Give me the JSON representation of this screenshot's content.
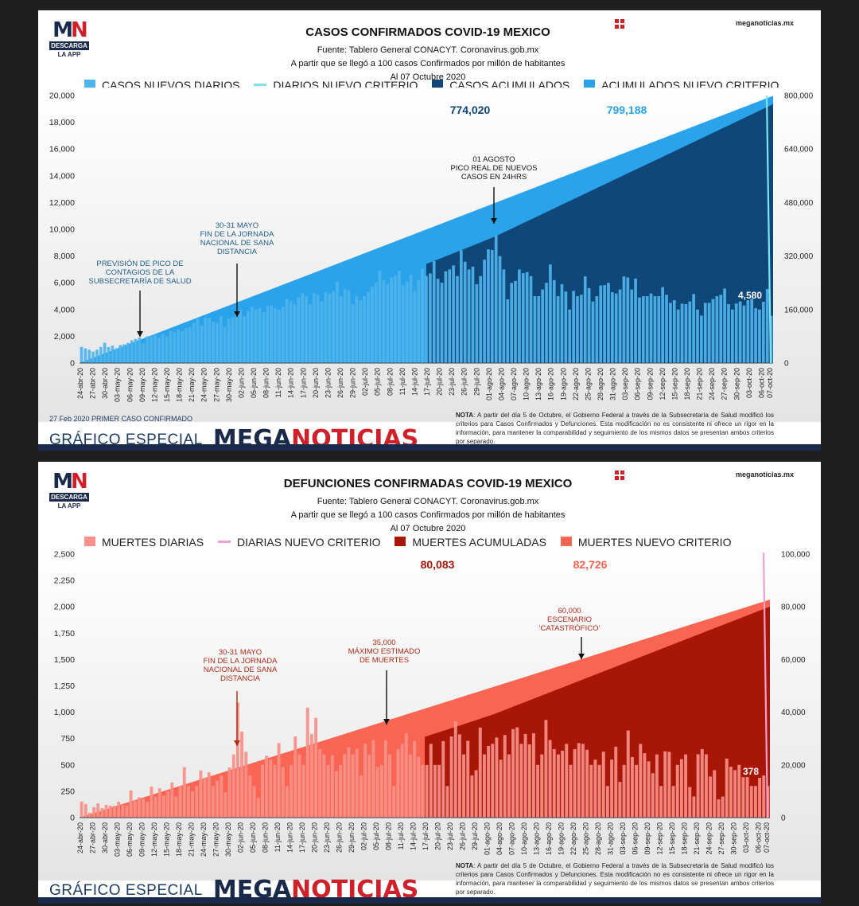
{
  "cases": {
    "logo": {
      "mn_m": "M",
      "mn_n": "N",
      "download": "DESCARGA",
      "app": "LA APP"
    },
    "site": "meganoticias.mx",
    "title": "CASOS CONFIRMADOS COVID-19 MEXICO",
    "source": "Fuente: Tablero General CONACYT. Coronavirus.gob.mx",
    "subtitle": "A partir que se llegó a 100 casos Confirmados por millón de habitantes",
    "date": "Al 07 Octubre 2020",
    "legend": [
      "CASOS NUEVOS DIARIOS",
      "DIARIOS NUEVO CRITERIO",
      "CASOS ACUMULADOS",
      "ACUMULADOS NUEVO CRITERIO"
    ],
    "first_case": "27 Feb 2020 PRIMER CASO CONFIRMADO",
    "brand_prefix": "GRÁFICO ESPECIAL",
    "brand_a": "MEGA",
    "brand_b": "NOTICIAS",
    "note_bold": "NOTA",
    "note": ": A partir del día 5 de Octubre, el Gobierno Federal a través de la Subsecretaría de Salud modificó los criterios para Casos Confirmados y Defunciones. Esta modificación no es consistente ni ofrece un rigor en la información, para mantener la comparabilidad y seguimiento de los mismos datos se presentan ambos criterios por separado.",
    "colors": {
      "daily": "#4fb3ec",
      "daily_new": "#7ee3f0",
      "cum": "#0e4778",
      "cum_new": "#2aa3ea",
      "text": "#1d5d8c",
      "bottom": "#1a2a4a"
    }
  },
  "deaths": {
    "logo": {
      "mn_m": "M",
      "mn_n": "N",
      "download": "DESCARGA",
      "app": "LA APP"
    },
    "site": "meganoticias.mx",
    "title": "DEFUNCIONES CONFIRMADAS COVID-19 MEXICO",
    "source": "Fuente: Tablero General CONACYT. Coronavirus.gob.mx",
    "subtitle": "A partir que se llegó a 100 casos Confirmados por millón de habitantes",
    "date": "Al 07 Octubre 2020",
    "legend": [
      "MUERTES DIARIAS",
      "DIARIAS NUEVO CRITERIO",
      "MUERTES ACUMULADAS",
      "MUERTES NUEVO CRITERIO"
    ],
    "brand_prefix": "GRÁFICO ESPECIAL",
    "brand_a": "MEGA",
    "brand_b": "NOTICIAS",
    "note_bold": "NOTA",
    "note": ": A partir del día 5 de Octubre, el Gobierno Federal a través de la Subsecretaría de Salud modificó los criterios para Casos Confirmados y Defunciones. Esta modificación no es consistente ni ofrece un rigor en la información, para mantener la comparabilidad y seguimiento de los mismos datos se presentan ambos criterios por separado.",
    "colors": {
      "daily": "#f69088",
      "daily_new": "#f0a0cf",
      "cum": "#a81607",
      "cum_new": "#f86553",
      "text": "#b32a14",
      "bottom": "#1a2a4a"
    }
  },
  "chart_data": [
    {
      "type": "bar",
      "title": "CASOS CONFIRMADOS COVID-19 MEXICO",
      "x_start": "24-abr-20",
      "x_end": "07-oct-20",
      "x_tick_labels": [
        "24-abr-20",
        "27-abr-20",
        "30-abr-20",
        "03-may-20",
        "06-may-20",
        "09-may-20",
        "12-may-20",
        "15-may-20",
        "18-may-20",
        "21-may-20",
        "24-may-20",
        "27-may-20",
        "30-may-20",
        "02-jun-20",
        "05-jun-20",
        "08-jun-20",
        "11-jun-20",
        "14-jun-20",
        "17-jun-20",
        "20-jun-20",
        "23-jun-20",
        "26-jun-20",
        "29-jun-20",
        "02-jul-20",
        "05-jul-20",
        "08-jul-20",
        "11-jul-20",
        "14-jul-20",
        "17-jul-20",
        "20-jul-20",
        "23-jul-20",
        "26-jul-20",
        "29-jul-20",
        "01-ago-20",
        "04-ago-20",
        "07-ago-20",
        "10-ago-20",
        "13-ago-20",
        "16-ago-20",
        "19-ago-20",
        "22-ago-20",
        "25-ago-20",
        "28-ago-20",
        "31-ago-20",
        "03-sep-20",
        "06-sep-20",
        "09-sep-20",
        "12-sep-20",
        "15-sep-20",
        "18-sep-20",
        "21-sep-20",
        "24-sep-20",
        "27-sep-20",
        "30-sep-20",
        "03-oct-20",
        "06-oct-20",
        "07-oct-20"
      ],
      "y_left": {
        "range": [
          0,
          20000
        ],
        "ticks": [
          "0",
          "2,000",
          "4,000",
          "6,000",
          "8,000",
          "10,000",
          "12,000",
          "14,000",
          "16,000",
          "18,000",
          "20,000"
        ]
      },
      "y_right": {
        "range": [
          0,
          800000
        ],
        "ticks": [
          "0",
          "160,000",
          "320,000",
          "480,000",
          "640,000",
          "800,000"
        ]
      },
      "daily_values": [
        1200,
        1100,
        1000,
        859,
        1000,
        1200,
        1515,
        1200,
        1300,
        1100,
        1349,
        1400,
        1500,
        1700,
        1800,
        1906,
        1500,
        2000,
        1992,
        2100,
        1900,
        2200,
        2000,
        2400,
        2300,
        2500,
        2400,
        2600,
        2700,
        3000,
        3329,
        2800,
        3400,
        3377,
        3100,
        3000,
        3500,
        2700,
        3300,
        3400,
        3800,
        4000,
        3500,
        3900,
        4200,
        4000,
        4100,
        3800,
        4300,
        4300,
        4100,
        4000,
        4200,
        4800,
        4600,
        4400,
        4900,
        5222,
        5000,
        4400,
        5200,
        5100,
        4600,
        5300,
        5200,
        5400,
        6104,
        5000,
        5500,
        5441,
        4410,
        5000,
        4700,
        5000,
        5300,
        5700,
        6000,
        6914,
        6200,
        5900,
        6400,
        6500,
        6891,
        5800,
        6094,
        6600,
        5400,
        6200,
        7051,
        6500,
        6700,
        7615,
        6300,
        6000,
        6859,
        7000,
        7300,
        6500,
        8438,
        7573,
        7000,
        7208,
        5900,
        6500,
        7730,
        8500,
        8458,
        9556,
        8000,
        7000,
        4761,
        6000,
        6139,
        7000,
        6717,
        6800,
        6500,
        5000,
        5000,
        5500,
        6000,
        7371,
        6200,
        5000,
        5900,
        5345,
        4000,
        5400,
        5000,
        5100,
        6482,
        5600,
        4600,
        5000,
        5800,
        5824,
        6000,
        5300,
        5200,
        5500,
        6476,
        6400,
        5500,
        6319,
        4900,
        5000,
        5000,
        5200,
        5000,
        5000,
        5674,
        5100,
        4500,
        4700,
        4000,
        4444,
        4400,
        4600,
        5167,
        4000,
        3542,
        4500,
        4500,
        4786,
        5000,
        5100,
        5573,
        4400,
        4000,
        4451,
        4600,
        4300,
        4700,
        4800,
        4100,
        4000,
        4580,
        5532,
        3535
      ],
      "cum_final": 774020,
      "cum_new_final": 799188,
      "labels": [
        "774,020",
        "799,188",
        "4,580"
      ],
      "annotations": [
        {
          "lines": [
            "PREVISIÓN DE PICO DE",
            "CONTAGIOS DE LA",
            "SUBSECRETARÍA DE SALUD"
          ],
          "date": "08-may-20"
        },
        {
          "lines": [
            "30-31 MAYO",
            "FIN DE LA JORNADA",
            "NACIONAL DE SANA",
            "DISTANCIA"
          ],
          "date": "31-may-20"
        },
        {
          "lines": [
            "01 AGOSTO",
            "PICO REAL DE NUEVOS",
            "CASOS EN 24HRS"
          ],
          "date": "01-ago-20"
        }
      ]
    },
    {
      "type": "bar",
      "title": "DEFUNCIONES CONFIRMADAS COVID-19 MEXICO",
      "x_start": "24-abr-20",
      "x_end": "07-oct-20",
      "x_tick_labels": [
        "24-abr-20",
        "27-abr-20",
        "30-abr-20",
        "03-may-20",
        "06-may-20",
        "09-may-20",
        "12-may-20",
        "15-may-20",
        "18-may-20",
        "21-may-20",
        "24-may-20",
        "27-may-20",
        "30-may-20",
        "02-jun-20",
        "05-jun-20",
        "08-jun-20",
        "11-jun-20",
        "14-jun-20",
        "17-jun-20",
        "20-jun-20",
        "23-jun-20",
        "26-jun-20",
        "29-jun-20",
        "02-jul-20",
        "05-jul-20",
        "08-jul-20",
        "11-jul-20",
        "14-jul-20",
        "17-jul-20",
        "20-jul-20",
        "23-jul-20",
        "26-jul-20",
        "29-jul-20",
        "01-ago-20",
        "04-ago-20",
        "07-ago-20",
        "10-ago-20",
        "13-ago-20",
        "16-ago-20",
        "19-ago-20",
        "22-ago-20",
        "25-ago-20",
        "28-ago-20",
        "31-ago-20",
        "03-sep-20",
        "06-sep-20",
        "09-sep-20",
        "12-sep-20",
        "15-sep-20",
        "18-sep-20",
        "21-sep-20",
        "24-sep-20",
        "27-sep-20",
        "30-sep-20",
        "03-oct-20",
        "06-oct-20",
        "07-oct-20"
      ],
      "y_left": {
        "range": [
          0,
          2500
        ],
        "ticks": [
          "0",
          "250",
          "500",
          "750",
          "1,000",
          "1,250",
          "1,500",
          "1,750",
          "2,000",
          "2,250",
          "2,500"
        ]
      },
      "y_right": {
        "range": [
          0,
          100000
        ],
        "ticks": [
          "0",
          "20,000",
          "40,000",
          "60,000",
          "80,000",
          "100,000"
        ]
      },
      "daily_values": [
        152,
        130,
        46,
        100,
        135,
        90,
        120,
        113,
        113,
        150,
        120,
        117,
        257,
        160,
        193,
        180,
        150,
        294,
        200,
        278,
        210,
        250,
        334,
        200,
        300,
        479,
        300,
        250,
        300,
        447,
        380,
        430,
        300,
        350,
        400,
        240,
        476,
        600,
        1092,
        816,
        625,
        400,
        300,
        188,
        500,
        587,
        550,
        500,
        708,
        480,
        300,
        500,
        770,
        600,
        500,
        1044,
        793,
        947,
        650,
        600,
        500,
        592,
        440,
        500,
        600,
        667,
        600,
        654,
        400,
        700,
        600,
        736,
        480,
        500,
        736,
        600,
        300,
        650,
        700,
        800,
        600,
        727,
        578,
        500,
        500,
        700,
        500,
        500,
        726,
        300,
        770,
        915,
        790,
        600,
        729,
        400,
        450,
        854,
        600,
        680,
        700,
        760,
        550,
        784,
        600,
        840,
        857,
        700,
        794,
        695,
        800,
        500,
        600,
        926,
        737,
        650,
        600,
        635,
        700,
        500,
        650,
        707,
        700,
        644,
        500,
        550,
        500,
        626,
        300,
        550,
        673,
        339,
        500,
        827,
        575,
        500,
        700,
        611,
        534,
        421,
        600,
        300,
        629,
        624,
        300,
        500,
        555,
        600,
        290,
        200,
        601,
        650,
        600,
        390,
        450,
        173,
        200,
        560,
        483,
        450,
        500,
        383,
        384,
        300,
        300,
        378,
        400,
        300
      ],
      "cum_final": 80083,
      "cum_new_final": 82726,
      "labels": [
        "80,083",
        "82,726",
        "378"
      ],
      "annotations": [
        {
          "lines": [
            "30-31 MAYO",
            "FIN DE LA JORNADA",
            "NACIONAL DE SANA",
            "DISTANCIA"
          ],
          "date": "31-may-20"
        },
        {
          "lines": [
            "35,000",
            "MÁXIMO ESTIMADO",
            "DE MUERTES"
          ],
          "value": 35000
        },
        {
          "lines": [
            "60,000",
            "ESCENARIO",
            "'CATASTRÓFICO'"
          ],
          "value": 60000
        }
      ]
    }
  ]
}
